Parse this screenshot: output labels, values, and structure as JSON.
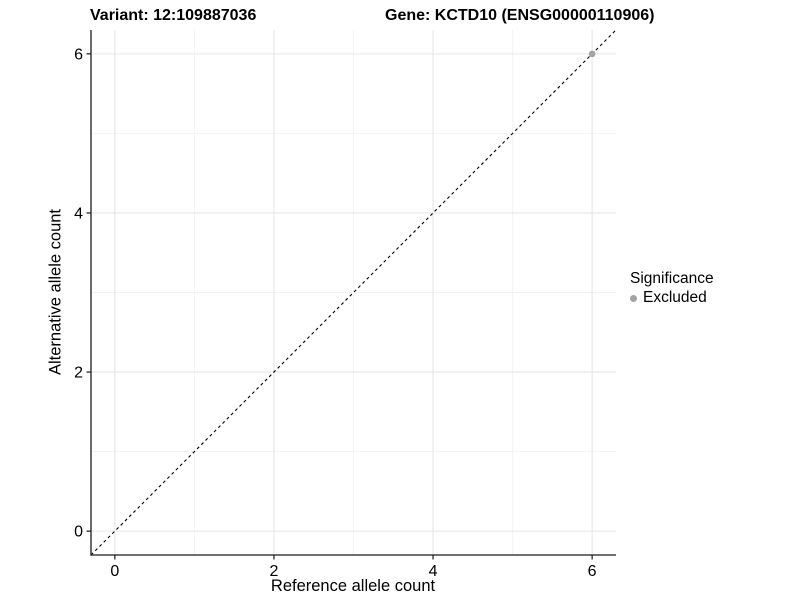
{
  "chart_data": {
    "type": "scatter",
    "titles": {
      "left": "Variant: 12:109887036",
      "right": "Gene: KCTD10 (ENSG00000110906)"
    },
    "xlabel": "Reference allele count",
    "ylabel": "Alternative allele count",
    "xlim": [
      -0.3,
      6.3
    ],
    "ylim": [
      -0.3,
      6.3
    ],
    "x_major_ticks": [
      0,
      2,
      4,
      6
    ],
    "x_minor_gridlines": [
      1,
      3,
      5
    ],
    "y_major_ticks": [
      0,
      2,
      4,
      6
    ],
    "y_minor_gridlines": [
      1,
      3,
      5
    ],
    "grid": "major+minor",
    "legend": {
      "title": "Significance",
      "position": "right",
      "items": [
        {
          "label": "Excluded",
          "color": "#a3a3a3"
        }
      ]
    },
    "series": [
      {
        "name": "Excluded",
        "color": "#a3a3a3",
        "points": [
          {
            "x": 6,
            "y": 6
          }
        ]
      }
    ],
    "reference_line": {
      "kind": "identity y=x",
      "style": "dashed",
      "color": "#000000",
      "from": [
        -0.3,
        -0.3
      ],
      "to": [
        6.3,
        6.3
      ]
    }
  },
  "colors": {
    "background": "#ffffff",
    "grid_major": "#e6e6e6",
    "grid_minor": "#f2f2f2",
    "axis_line": "#1a1a1a",
    "tick_mark": "#1a1a1a",
    "tick_label": "#000000",
    "title": "#000000"
  }
}
